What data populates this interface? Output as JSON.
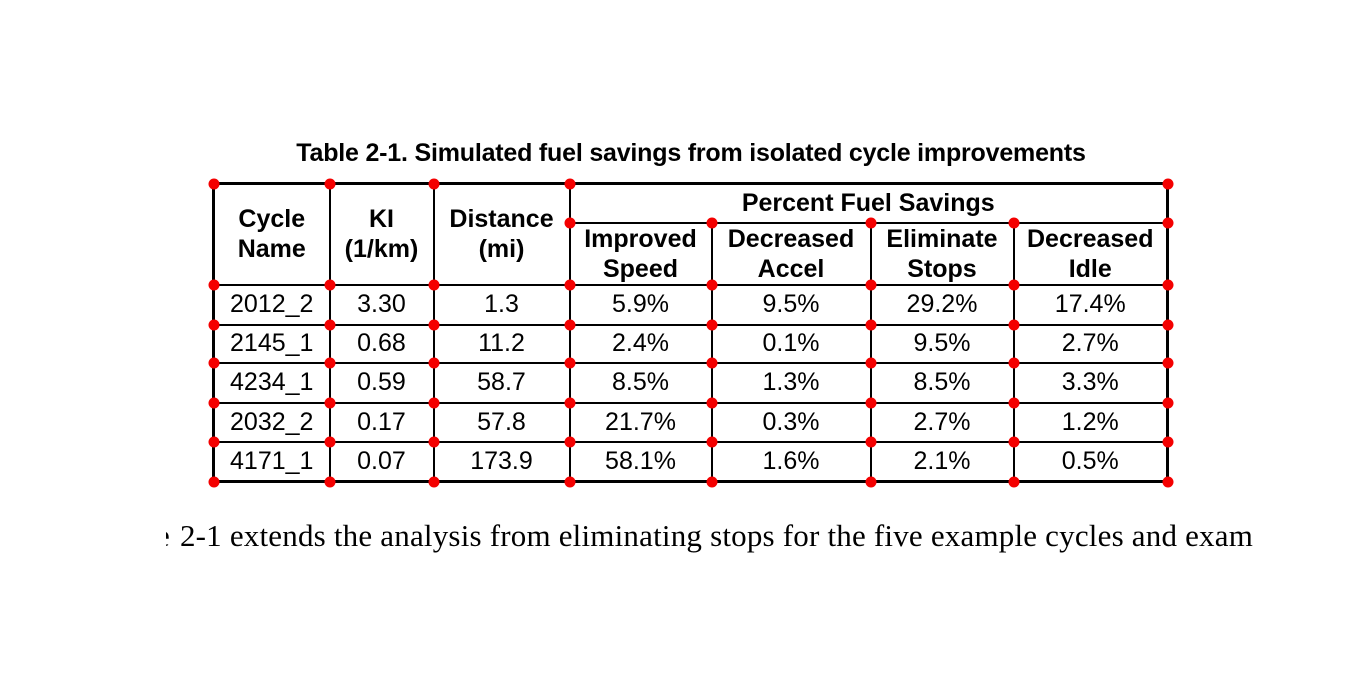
{
  "caption": "Table 2-1. Simulated fuel savings from isolated cycle improvements",
  "table": {
    "headers": {
      "cycle_name": "Cycle\nName",
      "ki": "KI\n(1/km)",
      "distance": "Distance\n(mi)",
      "group": "Percent Fuel Savings",
      "sub": [
        "Improved\nSpeed",
        "Decreased\nAccel",
        "Eliminate\nStops",
        "Decreased\nIdle"
      ]
    },
    "rows": [
      [
        "2012_2",
        "3.30",
        "1.3",
        "5.9%",
        "9.5%",
        "29.2%",
        "17.4%"
      ],
      [
        "2145_1",
        "0.68",
        "11.2",
        "2.4%",
        "0.1%",
        "9.5%",
        "2.7%"
      ],
      [
        "4234_1",
        "0.59",
        "58.7",
        "8.5%",
        "1.3%",
        "8.5%",
        "3.3%"
      ],
      [
        "2032_2",
        "0.17",
        "57.8",
        "21.7%",
        "0.3%",
        "2.7%",
        "1.2%"
      ],
      [
        "4171_1",
        "0.07",
        "173.9",
        "58.1%",
        "1.6%",
        "2.1%",
        "0.5%"
      ]
    ]
  },
  "paragraph": {
    "clipped_prefix": "e",
    "text": "2-1 extends the analysis from eliminating stops for the five example cycles and exam"
  },
  "annotations": {
    "dot_color": "#f40000",
    "line_color": "#000000"
  }
}
